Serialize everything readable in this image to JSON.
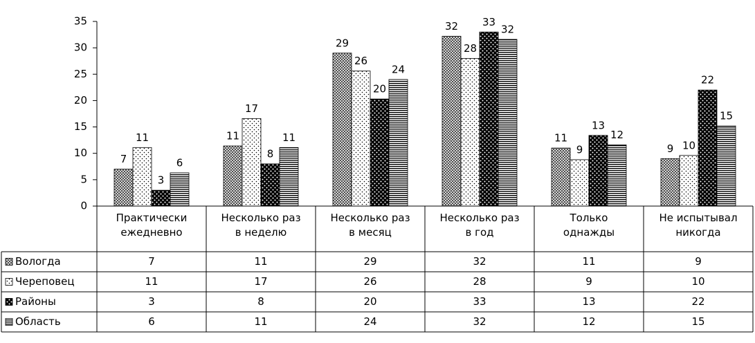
{
  "chart_data": {
    "type": "bar",
    "categories": [
      "Практически\nежедневно",
      "Несколько раз\nв неделю",
      "Несколько раз\nв месяц",
      "Несколько раз\nв год",
      "Только\nоднажды",
      "Не испытывал\nникогда"
    ],
    "series": [
      {
        "name": "Вологда",
        "pattern": "crosshatch",
        "values": [
          7.0,
          11.4,
          29.0,
          32.2,
          11.0,
          9.0
        ],
        "value_labels": [
          "7",
          "11",
          "29",
          "32",
          "11",
          "9"
        ]
      },
      {
        "name": "Череповец",
        "pattern": "dots",
        "values": [
          11.1,
          16.6,
          25.6,
          28.0,
          8.8,
          9.6
        ],
        "value_labels": [
          "11",
          "17",
          "26",
          "28",
          "9",
          "10"
        ]
      },
      {
        "name": "Районы",
        "pattern": "black-dots",
        "values": [
          3.0,
          8.0,
          20.3,
          33.0,
          13.4,
          22.0
        ],
        "value_labels": [
          "3",
          "8",
          "20",
          "33",
          "13",
          "22"
        ]
      },
      {
        "name": "Область",
        "pattern": "stripes",
        "values": [
          6.3,
          11.1,
          24.0,
          31.6,
          11.6,
          15.2
        ],
        "value_labels": [
          "6",
          "11",
          "24",
          "32",
          "12",
          "15"
        ]
      }
    ],
    "ylim": [
      0,
      35
    ],
    "yticks": [
      0,
      5,
      10,
      15,
      20,
      25,
      30,
      35
    ],
    "grid": false,
    "data_table": true
  }
}
